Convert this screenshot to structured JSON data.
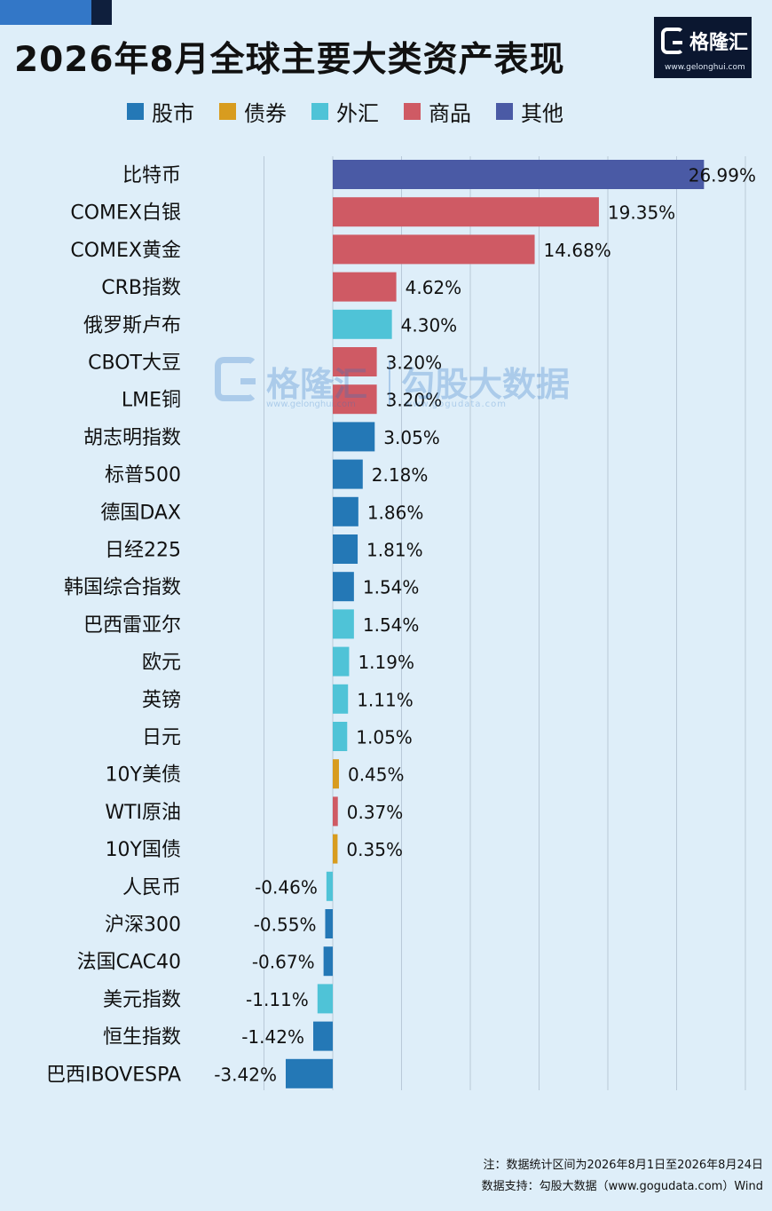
{
  "title": "2026年8月全球主要大类资产表现",
  "logo": {
    "brand": "格隆汇",
    "url": "www.gelonghui.com"
  },
  "watermark": {
    "brand": "格隆汇",
    "brand_url": "www.gelonghui.com",
    "data_brand": "勾股大数据",
    "data_url": "www.gogudata.com"
  },
  "legend": [
    {
      "name": "股市",
      "color": "#2478b6"
    },
    {
      "name": "债券",
      "color": "#d89c1f"
    },
    {
      "name": "外汇",
      "color": "#4fc3d7"
    },
    {
      "name": "商品",
      "color": "#cf5a64"
    },
    {
      "name": "其他",
      "color": "#4a5aa5"
    }
  ],
  "notes": {
    "line1": "注：数据统计区间为2026年8月1日至2026年8月24日",
    "line2": "数据支持：勾股大数据（www.gogudata.com）Wind"
  },
  "chart_data": {
    "type": "bar",
    "orientation": "horizontal",
    "title": "2026年8月全球主要大类资产表现",
    "legend_position": "top",
    "grid": true,
    "xlim": [
      -5,
      30
    ],
    "colors": {
      "股市": "#2478b6",
      "债券": "#d89c1f",
      "外汇": "#4fc3d7",
      "商品": "#cf5a64",
      "其他": "#4a5aa5"
    },
    "categories": [
      "比特币",
      "COMEX白银",
      "COMEX黄金",
      "CRB指数",
      "俄罗斯卢布",
      "CBOT大豆",
      "LME铜",
      "胡志明指数",
      "标普500",
      "德国DAX",
      "日经225",
      "韩国综合指数",
      "巴西雷亚尔",
      "欧元",
      "英镑",
      "日元",
      "10Y美债",
      "WTI原油",
      "10Y国债",
      "人民币",
      "沪深300",
      "法国CAC40",
      "美元指数",
      "恒生指数",
      "巴西IBOVESPA"
    ],
    "values": [
      26.99,
      19.35,
      14.68,
      4.62,
      4.3,
      3.2,
      3.2,
      3.05,
      2.18,
      1.86,
      1.81,
      1.54,
      1.54,
      1.19,
      1.11,
      1.05,
      0.45,
      0.37,
      0.35,
      -0.46,
      -0.55,
      -0.67,
      -1.11,
      -1.42,
      -3.42
    ],
    "labels": [
      "26.99%",
      "19.35%",
      "14.68%",
      "4.62%",
      "4.30%",
      "3.20%",
      "3.20%",
      "3.05%",
      "2.18%",
      "1.86%",
      "1.81%",
      "1.54%",
      "1.54%",
      "1.19%",
      "1.11%",
      "1.05%",
      "0.45%",
      "0.37%",
      "0.35%",
      "-0.46%",
      "-0.55%",
      "-0.67%",
      "-1.11%",
      "-1.42%",
      "-3.42%"
    ],
    "asset_classes": [
      "其他",
      "商品",
      "商品",
      "商品",
      "外汇",
      "商品",
      "商品",
      "股市",
      "股市",
      "股市",
      "股市",
      "股市",
      "外汇",
      "外汇",
      "外汇",
      "外汇",
      "债券",
      "商品",
      "债券",
      "外汇",
      "股市",
      "股市",
      "外汇",
      "股市",
      "股市"
    ]
  }
}
